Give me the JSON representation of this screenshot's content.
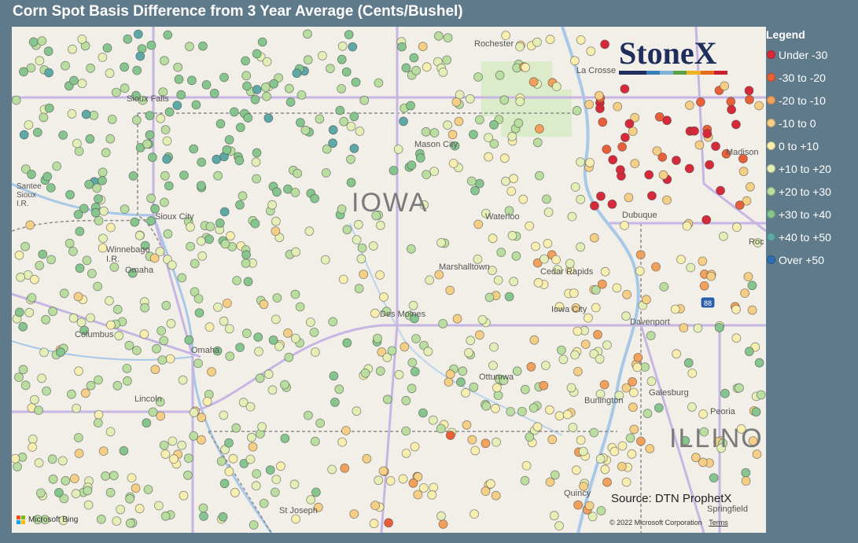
{
  "title": "Corn Spot Basis Difference from 3 Year Average (Cents/Bushel)",
  "legend": {
    "title": "Legend",
    "items": [
      {
        "label": "Under -30",
        "color": "#d62a3a"
      },
      {
        "label": "-30 to -20",
        "color": "#e8603a"
      },
      {
        "label": "-20 to -10",
        "color": "#f2a15c"
      },
      {
        "label": "-10 to 0",
        "color": "#f6cf86"
      },
      {
        "label": "0 to +10",
        "color": "#f7eeb0"
      },
      {
        "label": "+10 to +20",
        "color": "#e3efb6"
      },
      {
        "label": "+20 to +30",
        "color": "#b9dea0"
      },
      {
        "label": "+30 to +40",
        "color": "#86c58d"
      },
      {
        "label": "+40 to +50",
        "color": "#5fa8a8"
      },
      {
        "label": "Over +50",
        "color": "#2c6fb5"
      }
    ]
  },
  "map": {
    "state_labels": [
      "IOWA",
      "ILLINO"
    ],
    "cities": [
      "Rochester",
      "La Crosse",
      "Sioux Falls",
      "Mason City",
      "Madison",
      "Sioux City",
      "Waterloo",
      "Dubuque",
      "Winnebago I.R.",
      "Omaha",
      "Marshalltown",
      "Cedar Rapids",
      "Roc",
      "Des Moines",
      "Iowa City",
      "Davenport",
      "Columbus",
      "Omaha",
      "Ottumwa",
      "Galesburg",
      "Lincoln",
      "Burlington",
      "Peoria",
      "Quincy",
      "St Joseph",
      "Springfield",
      "Santee Sioux I.R."
    ],
    "highway": "88"
  },
  "logo": "StoneX",
  "source": "Source: DTN ProphetX",
  "attribution": {
    "bing": "Microsoft Bing",
    "copyright": "© 2022 Microsoft Corporation",
    "terms": "Terms"
  }
}
